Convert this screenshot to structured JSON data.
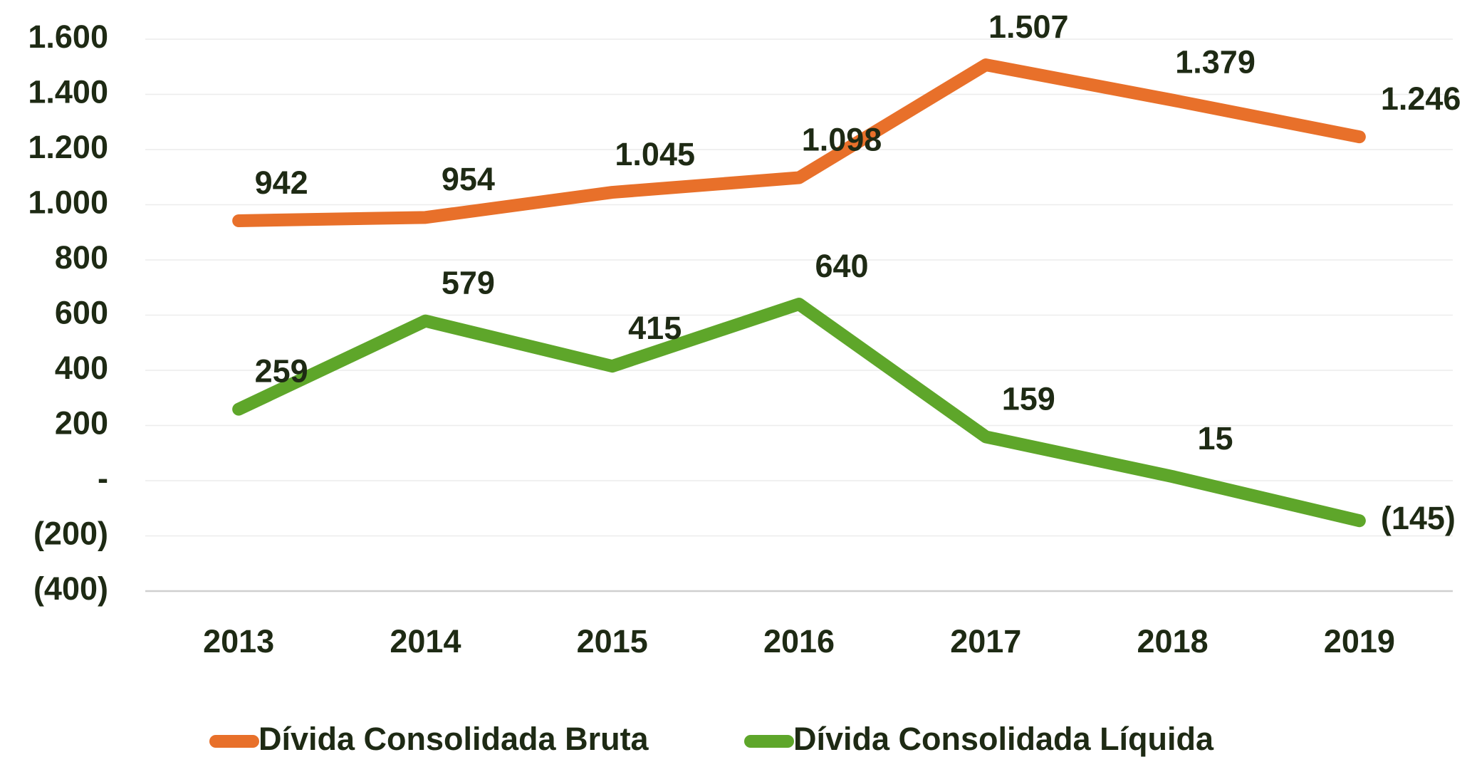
{
  "chart_data": {
    "type": "line",
    "categories": [
      "2013",
      "2014",
      "2015",
      "2016",
      "2017",
      "2018",
      "2019"
    ],
    "series": [
      {
        "name": "Dívida Consolidada Bruta",
        "color": "#e8702a",
        "values": [
          942,
          954,
          1045,
          1098,
          1507,
          1379,
          1246
        ],
        "value_labels": [
          "942",
          "954",
          "1.045",
          "1.098",
          "1.507",
          "1.379",
          "1.246"
        ]
      },
      {
        "name": "Dívida Consolidada Líquida",
        "color": "#5ea62a",
        "values": [
          259,
          579,
          415,
          640,
          159,
          15,
          -145
        ],
        "value_labels": [
          "259",
          "579",
          "415",
          "640",
          "159",
          "15",
          "(145)"
        ]
      }
    ],
    "ylim": [
      -400,
      1600
    ],
    "yticks": [
      {
        "value": 1600,
        "label": "1.600"
      },
      {
        "value": 1400,
        "label": "1.400"
      },
      {
        "value": 1200,
        "label": "1.200"
      },
      {
        "value": 1000,
        "label": "1.000"
      },
      800,
      600,
      400,
      200,
      {
        "value": 0,
        "label": "-"
      },
      {
        "value": -200,
        "label": "(200)"
      },
      {
        "value": -400,
        "label": "(400)"
      }
    ],
    "grid": true,
    "legend": "bottom"
  }
}
